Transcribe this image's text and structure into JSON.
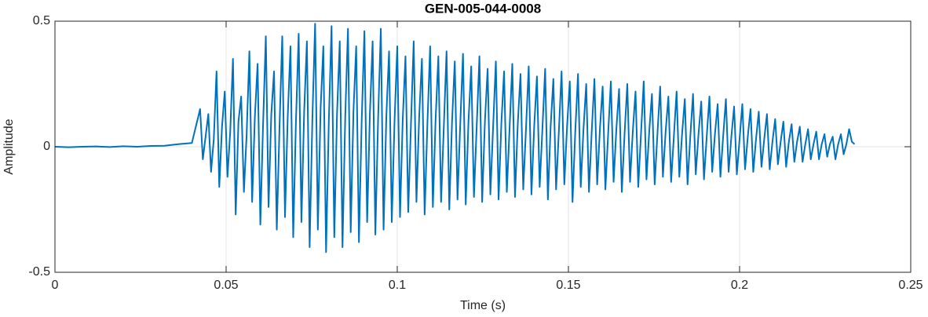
{
  "chart_data": {
    "type": "line",
    "title": "GEN-005-044-0008",
    "x_label": "Time (s)",
    "y_label": "Amplitude",
    "color": "#0072bd",
    "grid": true,
    "xlim": [
      0,
      0.25
    ],
    "xticks": [
      0,
      0.05,
      0.1,
      0.15,
      0.2,
      0.25
    ],
    "ylim": [
      -0.5,
      0.5
    ],
    "yticks": [
      -0.5,
      0,
      0.5
    ],
    "x": [
      0,
      0.004,
      0.008,
      0.012,
      0.016,
      0.02,
      0.024,
      0.028,
      0.032,
      0.036,
      0.04,
      0.0424,
      0.0432,
      0.044,
      0.0448,
      0.0456,
      0.0464,
      0.0472,
      0.048,
      0.0488,
      0.0496,
      0.0504,
      0.0512,
      0.052,
      0.0528,
      0.0536,
      0.0544,
      0.0552,
      0.056,
      0.0568,
      0.0576,
      0.0584,
      0.0592,
      0.06,
      0.0608,
      0.0616,
      0.0624,
      0.0632,
      0.064,
      0.0648,
      0.0656,
      0.0664,
      0.0672,
      0.068,
      0.0688,
      0.0696,
      0.0704,
      0.0712,
      0.072,
      0.0728,
      0.0736,
      0.0744,
      0.0752,
      0.076,
      0.0768,
      0.0776,
      0.0784,
      0.0792,
      0.08,
      0.0808,
      0.0816,
      0.0824,
      0.0832,
      0.084,
      0.0848,
      0.0856,
      0.0864,
      0.0872,
      0.088,
      0.0888,
      0.0896,
      0.0904,
      0.0912,
      0.092,
      0.0928,
      0.0936,
      0.0944,
      0.0952,
      0.096,
      0.0968,
      0.0976,
      0.0984,
      0.0992,
      0.1,
      0.1008,
      0.1016,
      0.1024,
      0.1032,
      0.104,
      0.1048,
      0.1056,
      0.1064,
      0.1072,
      0.108,
      0.1088,
      0.1096,
      0.1104,
      0.1112,
      0.112,
      0.1128,
      0.1136,
      0.1144,
      0.1152,
      0.116,
      0.1168,
      0.1176,
      0.1184,
      0.1192,
      0.12,
      0.1208,
      0.1216,
      0.1224,
      0.1232,
      0.124,
      0.1248,
      0.1256,
      0.1264,
      0.1272,
      0.128,
      0.1288,
      0.1296,
      0.1304,
      0.1312,
      0.132,
      0.1328,
      0.1336,
      0.1344,
      0.1352,
      0.136,
      0.1368,
      0.1376,
      0.1384,
      0.1392,
      0.14,
      0.1408,
      0.1416,
      0.1424,
      0.1432,
      0.144,
      0.1448,
      0.1456,
      0.1464,
      0.1472,
      0.148,
      0.1488,
      0.1496,
      0.1504,
      0.1512,
      0.152,
      0.1528,
      0.1536,
      0.1544,
      0.1552,
      0.156,
      0.1568,
      0.1576,
      0.1584,
      0.1592,
      0.16,
      0.1608,
      0.1616,
      0.1624,
      0.1632,
      0.164,
      0.1648,
      0.1656,
      0.1664,
      0.1672,
      0.168,
      0.1688,
      0.1696,
      0.1704,
      0.1712,
      0.172,
      0.1728,
      0.1736,
      0.1744,
      0.1752,
      0.176,
      0.1768,
      0.1776,
      0.1784,
      0.1792,
      0.18,
      0.1808,
      0.1816,
      0.1824,
      0.1832,
      0.184,
      0.1848,
      0.1856,
      0.1864,
      0.1872,
      0.188,
      0.1888,
      0.1896,
      0.1904,
      0.1912,
      0.192,
      0.1928,
      0.1936,
      0.1944,
      0.1952,
      0.196,
      0.1968,
      0.1976,
      0.1984,
      0.1992,
      0.2,
      0.2008,
      0.2016,
      0.2024,
      0.2032,
      0.204,
      0.2048,
      0.2056,
      0.2064,
      0.2072,
      0.208,
      0.2088,
      0.2096,
      0.2104,
      0.2112,
      0.212,
      0.2128,
      0.2136,
      0.2144,
      0.2152,
      0.216,
      0.2168,
      0.2176,
      0.2184,
      0.2192,
      0.22,
      0.2208,
      0.2216,
      0.2224,
      0.2232,
      0.224,
      0.2248,
      0.2256,
      0.2264,
      0.2272,
      0.228,
      0.2288,
      0.2296,
      0.2304,
      0.2312,
      0.232,
      0.2328,
      0.2336
    ],
    "values": [
      0,
      -0.002,
      0,
      0.001,
      -0.001,
      0.002,
      0,
      0.003,
      0.004,
      0.01,
      0.015,
      0.15,
      -0.05,
      0.04,
      0.13,
      -0.1,
      0.03,
      0.3,
      -0.16,
      0.08,
      0.22,
      -0.12,
      0.06,
      0.35,
      -0.27,
      0.1,
      0.2,
      -0.18,
      0.05,
      0.38,
      -0.22,
      0.12,
      0.33,
      -0.31,
      0.09,
      0.44,
      -0.24,
      0.13,
      0.3,
      -0.33,
      0.08,
      0.44,
      -0.28,
      0.12,
      0.4,
      -0.36,
      0.1,
      0.45,
      -0.3,
      0.14,
      0.42,
      -0.4,
      0.11,
      0.49,
      -0.33,
      0.15,
      0.4,
      -0.42,
      0.1,
      0.48,
      -0.36,
      0.13,
      0.42,
      -0.4,
      0.12,
      0.47,
      -0.34,
      0.14,
      0.4,
      -0.38,
      0.1,
      0.46,
      -0.3,
      0.13,
      0.42,
      -0.35,
      0.11,
      0.47,
      -0.33,
      0.12,
      0.38,
      -0.3,
      0.1,
      0.4,
      -0.28,
      0.11,
      0.36,
      -0.26,
      0.09,
      0.42,
      -0.22,
      0.12,
      0.35,
      -0.27,
      0.09,
      0.4,
      -0.24,
      0.11,
      0.36,
      -0.22,
      0.08,
      0.38,
      -0.25,
      0.1,
      0.34,
      -0.21,
      0.09,
      0.37,
      -0.23,
      0.1,
      0.32,
      -0.2,
      0.08,
      0.36,
      -0.22,
      0.1,
      0.31,
      -0.19,
      0.08,
      0.34,
      -0.21,
      0.09,
      0.3,
      -0.18,
      0.07,
      0.33,
      -0.2,
      0.09,
      0.29,
      -0.17,
      0.07,
      0.32,
      -0.19,
      0.08,
      0.28,
      -0.16,
      0.07,
      0.31,
      -0.21,
      0.08,
      0.27,
      -0.17,
      0.06,
      0.3,
      -0.15,
      0.08,
      0.26,
      -0.22,
      0.06,
      0.29,
      -0.16,
      0.07,
      0.25,
      -0.18,
      0.06,
      0.27,
      -0.15,
      0.07,
      0.24,
      -0.17,
      0.05,
      0.26,
      -0.14,
      0.07,
      0.23,
      -0.18,
      0.05,
      0.25,
      -0.14,
      0.06,
      0.22,
      -0.16,
      0.05,
      0.26,
      -0.13,
      0.06,
      0.21,
      -0.15,
      0.05,
      0.24,
      -0.12,
      0.06,
      0.2,
      -0.14,
      0.04,
      0.22,
      -0.12,
      0.05,
      0.19,
      -0.15,
      0.04,
      0.21,
      -0.11,
      0.05,
      0.18,
      -0.13,
      0.04,
      0.2,
      -0.1,
      0.05,
      0.17,
      -0.12,
      0.04,
      0.19,
      -0.1,
      0.04,
      0.16,
      -0.11,
      0.03,
      0.17,
      -0.09,
      0.04,
      0.15,
      -0.1,
      0.03,
      0.14,
      -0.08,
      0.03,
      0.13,
      -0.09,
      0.02,
      0.11,
      -0.07,
      0.02,
      0.1,
      -0.08,
      0.02,
      0.09,
      -0.06,
      0.02,
      0.08,
      -0.06,
      0.01,
      0.07,
      -0.05,
      0.01,
      0.06,
      -0.05,
      0.01,
      0.05,
      -0.04,
      0.01,
      0.04,
      -0.05,
      0.01,
      0.05,
      -0.03,
      0.01,
      0.07,
      0.02,
      0.01
    ]
  }
}
